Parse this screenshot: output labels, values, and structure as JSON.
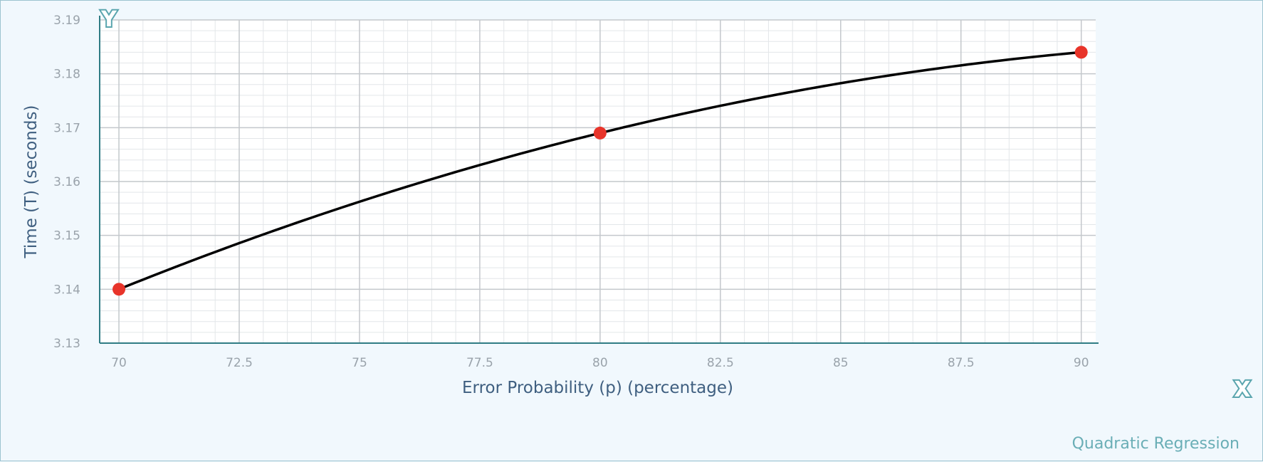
{
  "chart_data": {
    "type": "scatter",
    "xlabel": "Error Probability (p) (percentage)",
    "ylabel": "Time (T) (seconds)",
    "caption": "Quadratic Regression",
    "x_axis_badge": "X",
    "y_axis_badge": "Y",
    "xlim": [
      69.6,
      90.3
    ],
    "ylim": [
      3.13,
      3.19
    ],
    "x_ticks": [
      70,
      72.5,
      75,
      77.5,
      80,
      82.5,
      85,
      87.5,
      90
    ],
    "x_tick_labels": [
      "70",
      "72.5",
      "75",
      "77.5",
      "80",
      "82.5",
      "85",
      "87.5",
      "90"
    ],
    "y_ticks": [
      3.13,
      3.14,
      3.15,
      3.16,
      3.17,
      3.18,
      3.19
    ],
    "y_tick_labels": [
      "3.13",
      "3.14",
      "3.15",
      "3.16",
      "3.17",
      "3.18",
      "3.19"
    ],
    "grid": true,
    "points": {
      "x": [
        70,
        80,
        90
      ],
      "y": [
        3.14,
        3.169,
        3.184
      ]
    },
    "regression": {
      "model": "quadratic",
      "from": 70,
      "to": 90
    },
    "colors": {
      "points": "#e8342a",
      "curve": "#000000",
      "axis": "#2f7c84",
      "major_grid": "#c4c8cc",
      "minor_grid": "#e3e6e9",
      "plot_bg": "#ffffff"
    }
  }
}
